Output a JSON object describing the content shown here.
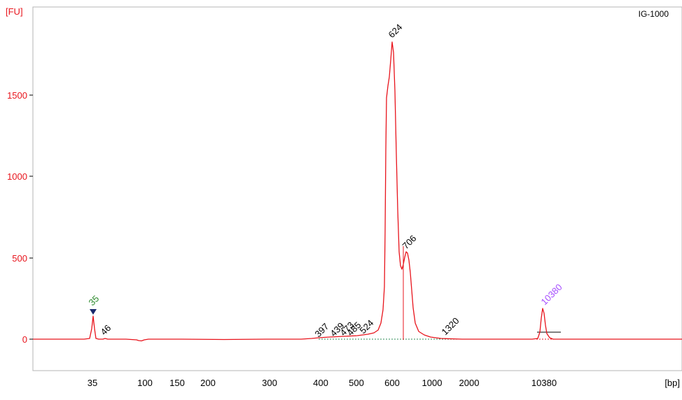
{
  "chart_data": {
    "type": "line",
    "title": "",
    "sample_name": "IG-1000",
    "ylabel": "[FU]",
    "xlabel": "[bp]",
    "y_ticks": [
      0,
      500,
      1000,
      1500
    ],
    "ylim": [
      -175,
      2050
    ],
    "x_ticks": [
      "35",
      "100",
      "150",
      "200",
      "300",
      "400",
      "500",
      "600",
      "1000",
      "2000",
      "10380"
    ],
    "grid": false,
    "colors": {
      "trace": "#e8141c",
      "axis": "#000000",
      "ylabel_text": "#e8141c",
      "lower_marker": "#2e8b2e",
      "upper_marker": "#a64dff",
      "marker_triangle": "#1a2a6c",
      "baseline": "#2e8b57"
    },
    "peak_labels": [
      {
        "text": "35",
        "kind": "lower_marker",
        "fu": 175,
        "bp": "35"
      },
      {
        "text": "46",
        "kind": "peak",
        "fu": 5,
        "bp": "46"
      },
      {
        "text": "397",
        "kind": "peak",
        "fu": 10,
        "bp": "397"
      },
      {
        "text": "439",
        "kind": "peak",
        "fu": 12,
        "bp": "439"
      },
      {
        "text": "473",
        "kind": "peak",
        "fu": 14,
        "bp": "473"
      },
      {
        "text": "485",
        "kind": "peak",
        "fu": 16,
        "bp": "485"
      },
      {
        "text": "524",
        "kind": "peak",
        "fu": 22,
        "bp": "524"
      },
      {
        "text": "624",
        "kind": "peak",
        "fu": 1825,
        "bp": "624"
      },
      {
        "text": "706",
        "kind": "peak",
        "fu": 540,
        "bp": "706"
      },
      {
        "text": "1320",
        "kind": "peak",
        "fu": 8,
        "bp": "1320"
      },
      {
        "text": "10380",
        "kind": "upper_marker",
        "fu": 190,
        "bp": "10380"
      }
    ],
    "series": [
      {
        "x_bp": [
          "35",
          "46",
          "100",
          "300",
          "397",
          "439",
          "473",
          "485",
          "524",
          "600",
          "624",
          "706",
          "1000",
          "1320",
          "2000",
          "10380"
        ],
        "fu": [
          175,
          5,
          -8,
          0,
          10,
          12,
          14,
          16,
          22,
          1550,
          1825,
          540,
          20,
          8,
          0,
          190
        ]
      }
    ]
  }
}
